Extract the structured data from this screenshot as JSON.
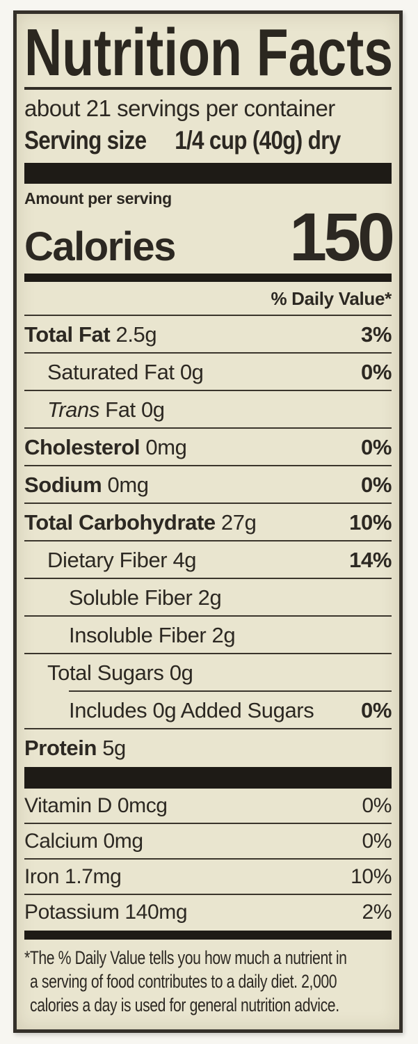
{
  "label": {
    "title": "Nutrition Facts",
    "servings_per_container": "about 21 servings per container",
    "serving_size_label": "Serving size",
    "serving_size_value": "1/4 cup (40g) dry",
    "amount_per_serving": "Amount per serving",
    "calories_label": "Calories",
    "calories_value": "150",
    "daily_value_header": "% Daily Value*",
    "rows": [
      {
        "bold": "Total Fat",
        "rest": " 2.5g",
        "dv": "3%"
      },
      {
        "rest": "Saturated Fat 0g",
        "dv": "0%"
      },
      {
        "italic": "Trans",
        "rest": " Fat 0g",
        "dv": ""
      },
      {
        "bold": "Cholesterol",
        "rest": " 0mg",
        "dv": "0%"
      },
      {
        "bold": "Sodium",
        "rest": " 0mg",
        "dv": "0%"
      },
      {
        "bold": "Total Carbohydrate",
        "rest": " 27g",
        "dv": "10%"
      },
      {
        "rest": "Dietary Fiber 4g",
        "dv": "14%"
      },
      {
        "rest": "Soluble Fiber 2g",
        "dv": ""
      },
      {
        "rest": "Insoluble Fiber 2g",
        "dv": ""
      },
      {
        "rest": "Total Sugars 0g",
        "dv": ""
      },
      {
        "rest": "Includes 0g Added Sugars",
        "dv": "0%"
      },
      {
        "bold": "Protein",
        "rest": " 5g",
        "dv": ""
      }
    ],
    "micronutrients": [
      {
        "label": "Vitamin D 0mcg",
        "dv": "0%"
      },
      {
        "label": "Calcium 0mg",
        "dv": "0%"
      },
      {
        "label": "Iron 1.7mg",
        "dv": "10%"
      },
      {
        "label": "Potassium 140mg",
        "dv": "2%"
      }
    ],
    "footnote_lines": [
      "*The % Daily Value tells you how much a nutrient in",
      "a serving of food contributes to a daily diet. 2,000",
      "calories a day is used for general nutrition advice."
    ],
    "colors": {
      "label_background": "#e9e5cf",
      "ink": "#2c2822",
      "separator_bar": "#1e1b16"
    }
  }
}
